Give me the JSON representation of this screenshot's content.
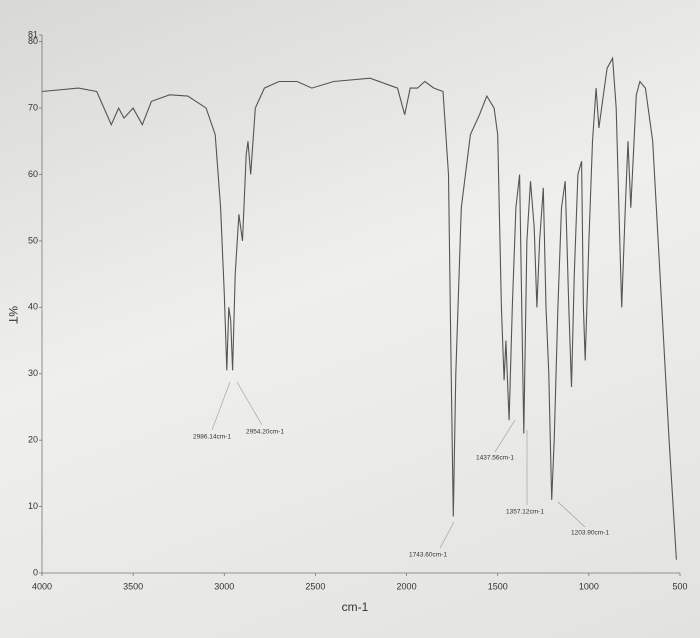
{
  "chart_data": {
    "type": "line",
    "ylabel": "%T",
    "xlabel": "cm-1",
    "xlim": [
      4000,
      500
    ],
    "xticks": [
      4000,
      3500,
      3000,
      2500,
      2000,
      1500,
      1000,
      500
    ],
    "ylim": [
      0,
      81
    ],
    "yticks": [
      0,
      10,
      20,
      30,
      40,
      50,
      60,
      70,
      80,
      81
    ],
    "color": "#555555",
    "annotations": [
      "2986.14cm-1",
      "2954.20cm-1",
      "1743.60cm-1",
      "1437.56cm-1",
      "1357.12cm-1",
      "1203.90cm-1"
    ],
    "x": [
      4000,
      3800,
      3700,
      3620,
      3580,
      3550,
      3500,
      3450,
      3400,
      3300,
      3200,
      3100,
      3050,
      3020,
      3000,
      2986.14,
      2975,
      2965,
      2954.2,
      2940,
      2920,
      2900,
      2880,
      2870,
      2855,
      2830,
      2780,
      2700,
      2600,
      2520,
      2400,
      2200,
      2100,
      2050,
      2010,
      1980,
      1940,
      1900,
      1850,
      1800,
      1770,
      1755,
      1743.6,
      1730,
      1700,
      1650,
      1600,
      1560,
      1520,
      1500,
      1480,
      1465,
      1455,
      1437.56,
      1420,
      1400,
      1380,
      1365,
      1357.12,
      1340,
      1320,
      1300,
      1285,
      1270,
      1250,
      1235,
      1220,
      1210,
      1203.9,
      1190,
      1170,
      1150,
      1130,
      1110,
      1095,
      1080,
      1060,
      1040,
      1030,
      1020,
      1000,
      980,
      960,
      945,
      920,
      900,
      870,
      850,
      830,
      820,
      800,
      785,
      770,
      740,
      720,
      690,
      650,
      600,
      560,
      520
    ],
    "values": [
      72.5,
      73,
      72.5,
      67.5,
      70,
      68.5,
      70,
      67.5,
      71,
      72,
      71.8,
      70,
      66,
      55,
      42,
      30.5,
      40,
      38,
      30.5,
      45,
      54,
      50,
      63,
      65,
      60,
      70,
      73,
      74,
      74,
      73,
      74,
      74.5,
      73.5,
      73,
      69,
      73,
      73,
      74,
      73,
      72.5,
      60,
      30,
      8.5,
      30,
      55,
      66,
      69,
      71.8,
      70,
      66,
      40,
      29,
      35,
      23,
      40,
      55,
      60,
      35,
      21,
      50,
      59,
      52,
      40,
      50,
      58,
      40,
      30,
      18,
      11,
      20,
      40,
      55,
      59,
      40,
      28,
      45,
      60,
      62,
      40,
      32,
      50,
      65,
      73,
      67,
      72,
      76,
      77.5,
      70,
      50,
      40,
      55,
      65,
      55,
      72,
      74,
      73,
      65,
      40,
      20,
      2
    ]
  }
}
